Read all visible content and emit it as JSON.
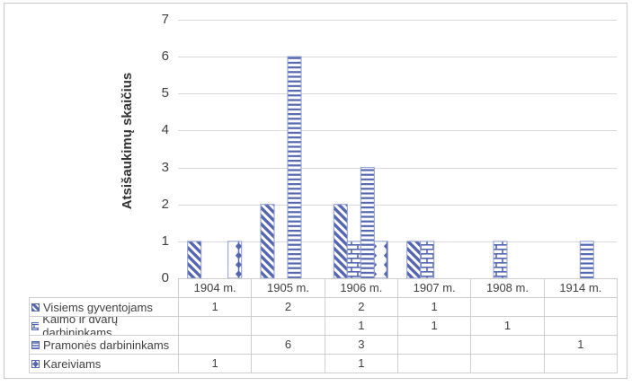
{
  "chart_data": {
    "type": "bar",
    "title": "",
    "xlabel": "",
    "ylabel": "Atsišaukimų skaičius",
    "ylim": [
      0,
      7
    ],
    "yticks": [
      0,
      1,
      2,
      3,
      4,
      5,
      6,
      7
    ],
    "grid": true,
    "legend_position": "table-below",
    "categories": [
      "1904 m.",
      "1905 m.",
      "1906 m.",
      "1907 m.",
      "1908 m.",
      "1914 m."
    ],
    "series": [
      {
        "name": "Visiems gyventojams",
        "pattern": "diagonal-stripe",
        "values": [
          1,
          2,
          2,
          1,
          "",
          ""
        ]
      },
      {
        "name": "Kaimo ir dvarų darbininkams",
        "pattern": "brick",
        "values": [
          "",
          "",
          1,
          1,
          1,
          ""
        ]
      },
      {
        "name": "Pramonės darbininkams",
        "pattern": "horizontal-stripe",
        "values": [
          "",
          6,
          3,
          "",
          "",
          1
        ]
      },
      {
        "name": "Kareiviams",
        "pattern": "diamond",
        "values": [
          1,
          "",
          1,
          "",
          "",
          ""
        ]
      }
    ]
  },
  "colors": {
    "pattern_blue": "#5466b0",
    "bar_border": "#8b98cf",
    "gridline": "#d9d9d9",
    "table_border": "#cfcece",
    "text": "#404040"
  }
}
